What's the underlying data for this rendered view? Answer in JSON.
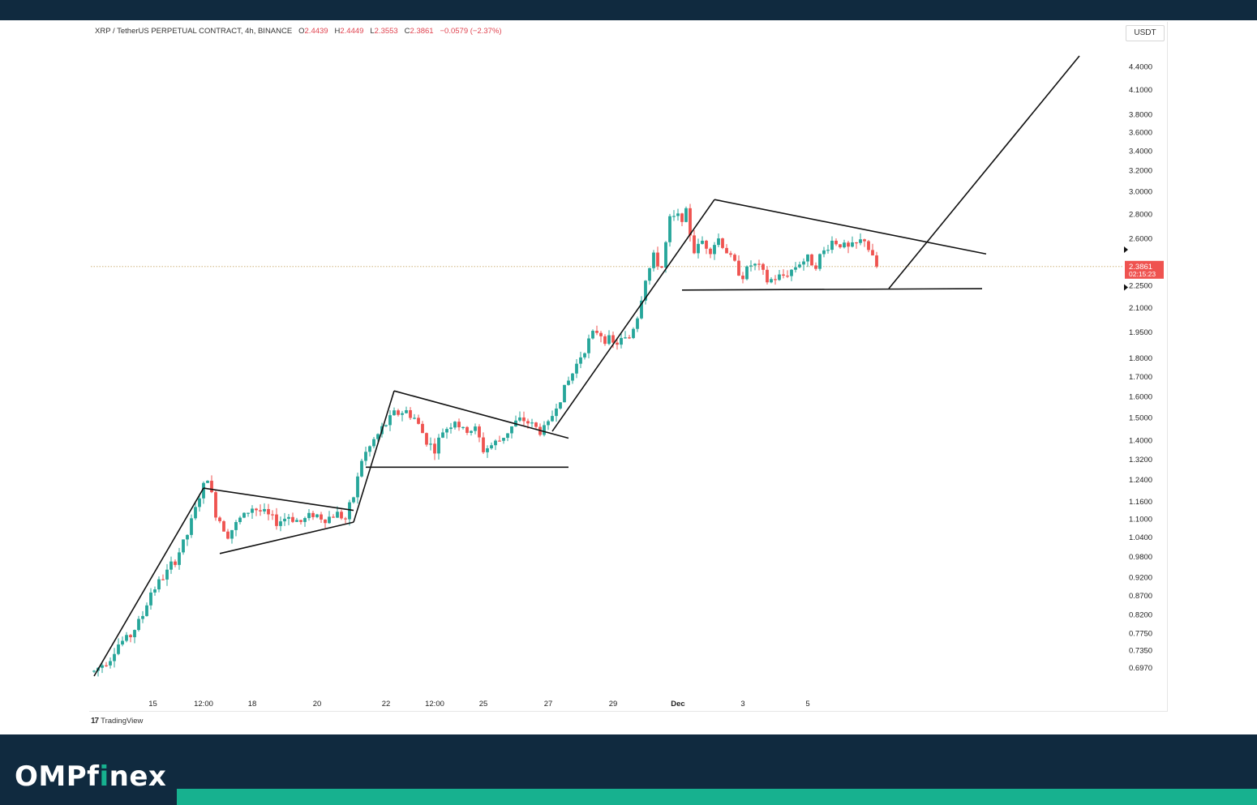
{
  "legend": {
    "symbol": "XRP / TetherUS PERPETUAL CONTRACT, 4h, BINANCE",
    "o_label": "O",
    "o_value": "2.4439",
    "h_label": "H",
    "h_value": "2.4449",
    "l_label": "L",
    "l_value": "2.3553",
    "c_label": "C",
    "c_value": "2.3861",
    "change": "−0.0579 (−2.37%)"
  },
  "currency": "USDT",
  "price_label": {
    "value": "2.3861",
    "countdown": "02:15:23"
  },
  "footer": {
    "tv_glyph": "17",
    "tv_name": "TradingView"
  },
  "brand": {
    "before": "OMPf",
    "accent": "i",
    "after": "nex"
  },
  "colors": {
    "up": "#26a69a",
    "down": "#ef5350",
    "brand_dark": "#102a3f",
    "brand_accent": "#17b18f"
  },
  "chart_data": {
    "type": "candlestick",
    "title": "XRP / TetherUS PERPETUAL CONTRACT, 4h, BINANCE",
    "ylabel": "USDT",
    "y_scale": "log",
    "ylim": [
      0.66,
      4.7
    ],
    "y_ticks": [
      "4.4000",
      "4.1000",
      "3.8000",
      "3.6000",
      "3.4000",
      "3.2000",
      "3.0000",
      "2.8000",
      "2.6000",
      "2.2500",
      "2.1000",
      "1.9500",
      "1.8000",
      "1.7000",
      "1.6000",
      "1.5000",
      "1.4000",
      "1.3200",
      "1.2400",
      "1.1600",
      "1.1000",
      "1.0400",
      "0.9800",
      "0.9200",
      "0.8700",
      "0.8200",
      "0.7750",
      "0.7350",
      "0.6970"
    ],
    "x_ticks": [
      "15",
      "12:00",
      "18",
      "20",
      "22",
      "12:00",
      "25",
      "27",
      "29",
      "Dec",
      "3",
      "5"
    ],
    "last_price": 2.3861,
    "waypoints": [
      [
        0,
        0.69
      ],
      [
        4,
        0.72
      ],
      [
        6,
        0.75
      ],
      [
        9,
        0.77
      ],
      [
        12,
        0.82
      ],
      [
        14,
        0.88
      ],
      [
        17,
        0.92
      ],
      [
        20,
        0.97
      ],
      [
        23,
        1.05
      ],
      [
        26,
        1.18
      ],
      [
        28,
        1.25
      ],
      [
        30,
        1.12
      ],
      [
        33,
        1.05
      ],
      [
        36,
        1.1
      ],
      [
        39,
        1.14
      ],
      [
        42,
        1.12
      ],
      [
        45,
        1.09
      ],
      [
        48,
        1.11
      ],
      [
        51,
        1.09
      ],
      [
        54,
        1.12
      ],
      [
        57,
        1.1
      ],
      [
        60,
        1.12
      ],
      [
        62,
        1.1
      ],
      [
        64,
        1.18
      ],
      [
        66,
        1.32
      ],
      [
        69,
        1.4
      ],
      [
        71,
        1.45
      ],
      [
        74,
        1.52
      ],
      [
        77,
        1.53
      ],
      [
        79,
        1.5
      ],
      [
        82,
        1.4
      ],
      [
        84,
        1.36
      ],
      [
        86,
        1.44
      ],
      [
        89,
        1.49
      ],
      [
        91,
        1.44
      ],
      [
        94,
        1.45
      ],
      [
        96,
        1.36
      ],
      [
        98,
        1.38
      ],
      [
        100,
        1.4
      ],
      [
        102,
        1.44
      ],
      [
        104,
        1.48
      ],
      [
        106,
        1.49
      ],
      [
        108,
        1.47
      ],
      [
        110,
        1.44
      ],
      [
        112,
        1.47
      ],
      [
        114,
        1.56
      ],
      [
        116,
        1.64
      ],
      [
        118,
        1.72
      ],
      [
        120,
        1.82
      ],
      [
        122,
        1.9
      ],
      [
        124,
        1.96
      ],
      [
        126,
        1.92
      ],
      [
        128,
        1.88
      ],
      [
        130,
        1.9
      ],
      [
        132,
        1.92
      ],
      [
        134,
        2.05
      ],
      [
        136,
        2.3
      ],
      [
        138,
        2.45
      ],
      [
        140,
        2.38
      ],
      [
        142,
        2.75
      ],
      [
        144,
        2.78
      ],
      [
        146,
        2.8
      ],
      [
        148,
        2.5
      ],
      [
        150,
        2.58
      ],
      [
        152,
        2.52
      ],
      [
        154,
        2.6
      ],
      [
        156,
        2.5
      ],
      [
        158,
        2.4
      ],
      [
        160,
        2.32
      ],
      [
        162,
        2.4
      ],
      [
        164,
        2.38
      ],
      [
        166,
        2.28
      ],
      [
        168,
        2.3
      ],
      [
        170,
        2.32
      ],
      [
        172,
        2.36
      ],
      [
        174,
        2.42
      ],
      [
        176,
        2.44
      ],
      [
        178,
        2.41
      ],
      [
        180,
        2.5
      ],
      [
        182,
        2.58
      ],
      [
        184,
        2.56
      ],
      [
        186,
        2.52
      ],
      [
        188,
        2.55
      ],
      [
        190,
        2.6
      ],
      [
        192,
        2.44
      ],
      [
        193,
        2.386
      ]
    ],
    "trendlines": [
      {
        "name": "pole-1",
        "from": [
          0,
          0.68
        ],
        "to": [
          27,
          1.21
        ]
      },
      {
        "name": "pennant-1-upper",
        "from": [
          27,
          1.21
        ],
        "to": [
          64,
          1.13
        ]
      },
      {
        "name": "pennant-1-lower",
        "from": [
          31,
          0.99
        ],
        "to": [
          64,
          1.09
        ]
      },
      {
        "name": "pole-2",
        "from": [
          64,
          1.09
        ],
        "to": [
          68,
          1.28
        ]
      },
      {
        "name": "pole-2b",
        "from": [
          68,
          1.28
        ],
        "to": [
          74,
          1.63
        ]
      },
      {
        "name": "wedge-2-upper",
        "from": [
          74,
          1.63
        ],
        "to": [
          117,
          1.41
        ]
      },
      {
        "name": "wedge-2-lower",
        "from": [
          67,
          1.29
        ],
        "to": [
          117,
          1.29
        ]
      },
      {
        "name": "pole-3",
        "from": [
          113,
          1.44
        ],
        "to": [
          153,
          2.93
        ]
      },
      {
        "name": "triangle-3-upper",
        "from": [
          153,
          2.93
        ],
        "to": [
          220,
          2.48
        ]
      },
      {
        "name": "triangle-3-lower",
        "from": [
          145,
          2.22
        ],
        "to": [
          219,
          2.23
        ]
      },
      {
        "name": "projection",
        "from": [
          196,
          2.23
        ],
        "to": [
          243,
          4.55
        ]
      }
    ]
  }
}
